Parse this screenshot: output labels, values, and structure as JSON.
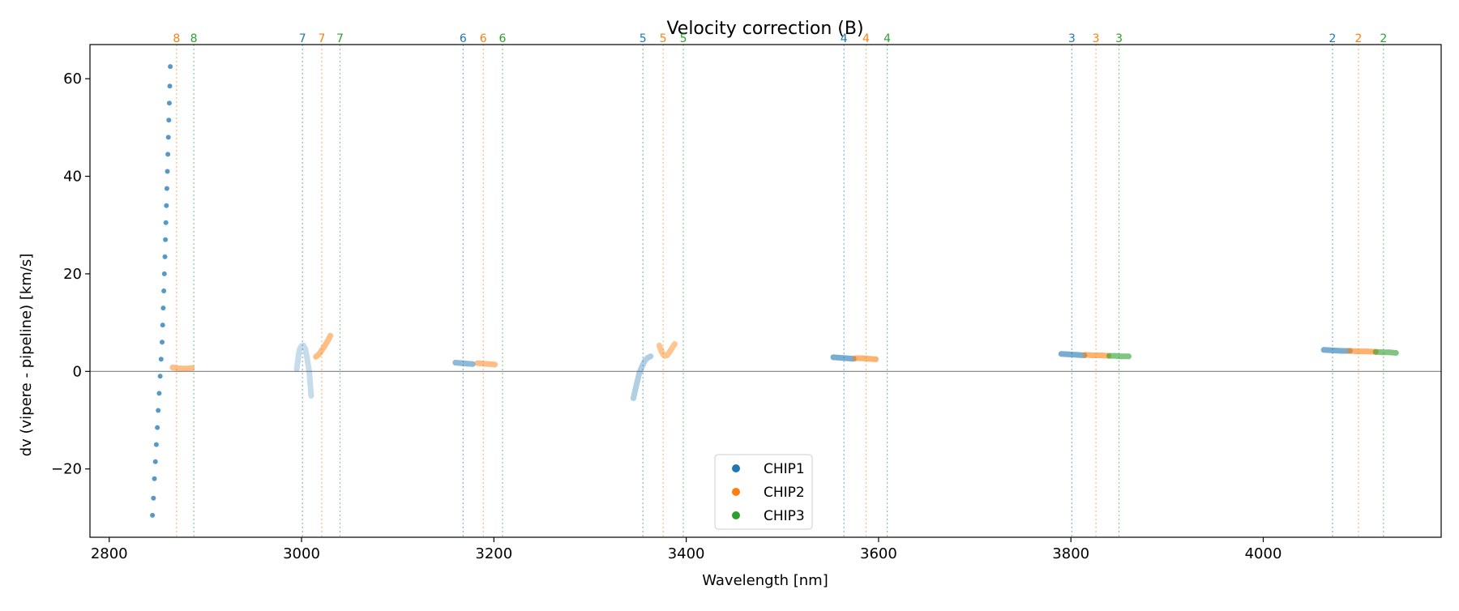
{
  "chart_data": {
    "type": "scatter",
    "title": "Velocity correction (B)",
    "xlabel": "Wavelength [nm]",
    "ylabel": "dv (vipere - pipeline) [km/s]",
    "xlim": [
      2780,
      4185
    ],
    "ylim": [
      -34,
      67
    ],
    "xticks": [
      2800,
      3000,
      3200,
      3400,
      3600,
      3800,
      4000
    ],
    "yticks": [
      -20,
      0,
      20,
      40,
      60
    ],
    "xtick_labels": [
      "2800",
      "3000",
      "3200",
      "3400",
      "3600",
      "3800",
      "4000"
    ],
    "ytick_labels": [
      "−20",
      "0",
      "20",
      "40",
      "60"
    ],
    "zero_line": 0,
    "legend": {
      "location": "lower-center",
      "entries": [
        {
          "label": "CHIP1",
          "color": "#1f77b4"
        },
        {
          "label": "CHIP2",
          "color": "#ff7f0e"
        },
        {
          "label": "CHIP3",
          "color": "#2ca02c"
        }
      ]
    },
    "order_markers": [
      {
        "order": "8",
        "wavelength": 2870,
        "chip": 2
      },
      {
        "order": "8",
        "wavelength": 2888,
        "chip": 3
      },
      {
        "order": "7",
        "wavelength": 3001,
        "chip": 1
      },
      {
        "order": "7",
        "wavelength": 3021,
        "chip": 2
      },
      {
        "order": "7",
        "wavelength": 3040,
        "chip": 3
      },
      {
        "order": "6",
        "wavelength": 3168,
        "chip": 1
      },
      {
        "order": "6",
        "wavelength": 3189,
        "chip": 2
      },
      {
        "order": "6",
        "wavelength": 3209,
        "chip": 3
      },
      {
        "order": "5",
        "wavelength": 3355,
        "chip": 1
      },
      {
        "order": "5",
        "wavelength": 3376,
        "chip": 2
      },
      {
        "order": "5",
        "wavelength": 3397,
        "chip": 3
      },
      {
        "order": "4",
        "wavelength": 3564,
        "chip": 1
      },
      {
        "order": "4",
        "wavelength": 3587,
        "chip": 2
      },
      {
        "order": "4",
        "wavelength": 3609,
        "chip": 3
      },
      {
        "order": "3",
        "wavelength": 3801,
        "chip": 1
      },
      {
        "order": "3",
        "wavelength": 3826,
        "chip": 2
      },
      {
        "order": "3",
        "wavelength": 3850,
        "chip": 3
      },
      {
        "order": "2",
        "wavelength": 4072,
        "chip": 1
      },
      {
        "order": "2",
        "wavelength": 4099,
        "chip": 2
      },
      {
        "order": "2",
        "wavelength": 4125,
        "chip": 3
      }
    ],
    "series": [
      {
        "name": "CHIP1 order 8",
        "chip": 1,
        "opacity": 0.75,
        "style": "points",
        "points": [
          [
            2845,
            -29.5
          ],
          [
            2846,
            -26
          ],
          [
            2847,
            -22
          ],
          [
            2848,
            -18.5
          ],
          [
            2849,
            -15
          ],
          [
            2850,
            -11.5
          ],
          [
            2851,
            -8
          ],
          [
            2852,
            -4.5
          ],
          [
            2853,
            -1
          ],
          [
            2854,
            2.5
          ],
          [
            2855,
            6
          ],
          [
            2855.6,
            9.5
          ],
          [
            2856.2,
            13
          ],
          [
            2856.8,
            16.5
          ],
          [
            2857.4,
            20
          ],
          [
            2858,
            23.5
          ],
          [
            2858.5,
            27
          ],
          [
            2859,
            30.5
          ],
          [
            2859.5,
            34
          ],
          [
            2860,
            37.5
          ],
          [
            2860.5,
            41
          ],
          [
            2861,
            44.5
          ],
          [
            2861.5,
            48
          ],
          [
            2862,
            51.5
          ],
          [
            2862.5,
            55
          ],
          [
            2863,
            58.5
          ],
          [
            2863.5,
            62.5
          ]
        ]
      },
      {
        "name": "CHIP2 order 8",
        "chip": 2,
        "opacity": 0.5,
        "style": "band",
        "points": [
          [
            2866,
            0.8
          ],
          [
            2870,
            0.7
          ],
          [
            2874,
            0.6
          ],
          [
            2878,
            0.6
          ],
          [
            2882,
            0.6
          ],
          [
            2886,
            0.7
          ]
        ]
      },
      {
        "name": "CHIP1 order 7",
        "chip": 1,
        "opacity": 0.25,
        "style": "band",
        "points": [
          [
            2995,
            0.5
          ],
          [
            2996,
            2
          ],
          [
            2997,
            3.5
          ],
          [
            2998,
            4.5
          ],
          [
            3000,
            5.2
          ],
          [
            3002,
            5.3
          ],
          [
            3004,
            4.5
          ],
          [
            3006,
            2.5
          ],
          [
            3008,
            0
          ],
          [
            3009,
            -2.5
          ],
          [
            3010,
            -5
          ]
        ]
      },
      {
        "name": "CHIP2 order 7",
        "chip": 2,
        "opacity": 0.5,
        "style": "band",
        "points": [
          [
            3015,
            3
          ],
          [
            3018,
            3.5
          ],
          [
            3021,
            4.3
          ],
          [
            3024,
            5.2
          ],
          [
            3027,
            6.2
          ],
          [
            3030,
            7.3
          ]
        ]
      },
      {
        "name": "CHIP1 order 6",
        "chip": 1,
        "opacity": 0.5,
        "style": "band",
        "points": [
          [
            3160,
            1.8
          ],
          [
            3166,
            1.7
          ],
          [
            3172,
            1.6
          ],
          [
            3178,
            1.5
          ]
        ]
      },
      {
        "name": "CHIP2 order 6",
        "chip": 2,
        "opacity": 0.5,
        "style": "band",
        "points": [
          [
            3183,
            1.7
          ],
          [
            3189,
            1.6
          ],
          [
            3195,
            1.5
          ],
          [
            3201,
            1.4
          ]
        ]
      },
      {
        "name": "CHIP1 order 5",
        "chip": 1,
        "opacity": 0.35,
        "style": "band",
        "points": [
          [
            3345,
            -5.5
          ],
          [
            3348,
            -3
          ],
          [
            3351,
            -0.5
          ],
          [
            3354,
            1
          ],
          [
            3357,
            2.2
          ],
          [
            3360,
            2.8
          ],
          [
            3363,
            3.1
          ]
        ]
      },
      {
        "name": "CHIP2 order 5",
        "chip": 2,
        "opacity": 0.45,
        "style": "band",
        "points": [
          [
            3372,
            5.3
          ],
          [
            3374,
            4.2
          ],
          [
            3376,
            3.5
          ],
          [
            3378,
            3.2
          ],
          [
            3380,
            3.3
          ],
          [
            3382,
            3.8
          ],
          [
            3385,
            4.7
          ],
          [
            3388,
            5.6
          ]
        ]
      },
      {
        "name": "CHIP1 order 4",
        "chip": 1,
        "opacity": 0.6,
        "style": "band",
        "points": [
          [
            3553,
            2.9
          ],
          [
            3560,
            2.8
          ],
          [
            3567,
            2.7
          ],
          [
            3574,
            2.6
          ]
        ]
      },
      {
        "name": "CHIP2 order 4",
        "chip": 2,
        "opacity": 0.6,
        "style": "band",
        "points": [
          [
            3576,
            2.7
          ],
          [
            3583,
            2.7
          ],
          [
            3590,
            2.6
          ],
          [
            3597,
            2.5
          ]
        ]
      },
      {
        "name": "CHIP1 order 3",
        "chip": 1,
        "opacity": 0.6,
        "style": "band",
        "points": [
          [
            3790,
            3.6
          ],
          [
            3798,
            3.5
          ],
          [
            3806,
            3.4
          ],
          [
            3814,
            3.3
          ]
        ]
      },
      {
        "name": "CHIP2 order 3",
        "chip": 2,
        "opacity": 0.6,
        "style": "band",
        "points": [
          [
            3815,
            3.4
          ],
          [
            3823,
            3.3
          ],
          [
            3831,
            3.3
          ],
          [
            3839,
            3.2
          ]
        ]
      },
      {
        "name": "CHIP3 order 3",
        "chip": 3,
        "opacity": 0.6,
        "style": "band",
        "points": [
          [
            3840,
            3.2
          ],
          [
            3846,
            3.2
          ],
          [
            3852,
            3.1
          ],
          [
            3860,
            3.1
          ]
        ]
      },
      {
        "name": "CHIP1 order 2",
        "chip": 1,
        "opacity": 0.6,
        "style": "band",
        "points": [
          [
            4063,
            4.4
          ],
          [
            4072,
            4.3
          ],
          [
            4081,
            4.2
          ],
          [
            4090,
            4.2
          ]
        ]
      },
      {
        "name": "CHIP2 order 2",
        "chip": 2,
        "opacity": 0.6,
        "style": "band",
        "points": [
          [
            4090,
            4.2
          ],
          [
            4099,
            4.1
          ],
          [
            4108,
            4.1
          ],
          [
            4117,
            4.0
          ]
        ]
      },
      {
        "name": "CHIP3 order 2",
        "chip": 3,
        "opacity": 0.6,
        "style": "band",
        "points": [
          [
            4117,
            4.0
          ],
          [
            4124,
            3.9
          ],
          [
            4131,
            3.9
          ],
          [
            4138,
            3.8
          ]
        ]
      }
    ]
  }
}
